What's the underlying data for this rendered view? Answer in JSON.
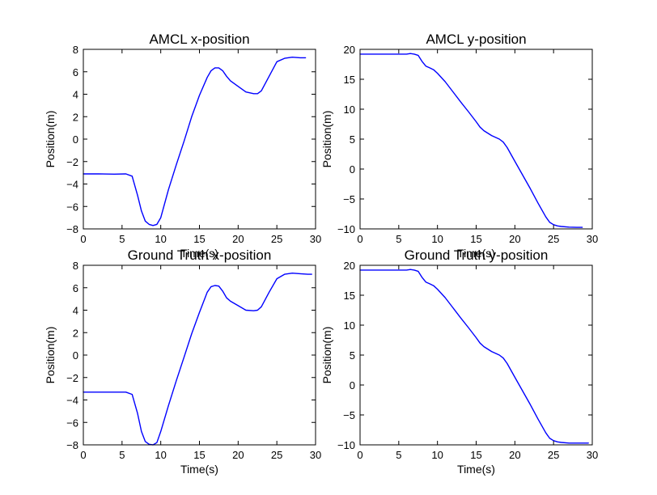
{
  "colors": {
    "line": "#0000ff",
    "axes": "#000000",
    "background": "#ffffff"
  },
  "chart_data": [
    {
      "type": "line",
      "title": "AMCL x-position",
      "xlabel": "Time(s)",
      "ylabel": "Position(m)",
      "xlim": [
        0,
        30
      ],
      "ylim": [
        -8,
        8
      ],
      "xticks": [
        0,
        5,
        10,
        15,
        20,
        25,
        30
      ],
      "yticks": [
        -8,
        -6,
        -4,
        -2,
        0,
        2,
        4,
        6,
        8
      ],
      "grid": false,
      "series": [
        {
          "x": [
            0,
            2,
            4,
            5.5,
            6.3,
            7,
            7.5,
            8,
            8.5,
            9,
            9.5,
            10,
            11,
            12,
            13,
            14,
            15,
            16,
            16.5,
            17,
            17.5,
            18,
            18.5,
            19,
            20,
            21,
            22,
            22.5,
            23,
            24,
            25,
            26,
            27,
            28,
            28.7
          ],
          "y": [
            -3.1,
            -3.1,
            -3.12,
            -3.1,
            -3.3,
            -5.0,
            -6.4,
            -7.3,
            -7.6,
            -7.7,
            -7.6,
            -7.0,
            -4.5,
            -2.3,
            -0.2,
            2.0,
            3.9,
            5.5,
            6.1,
            6.35,
            6.35,
            6.1,
            5.6,
            5.2,
            4.7,
            4.2,
            4.05,
            4.05,
            4.3,
            5.6,
            6.9,
            7.2,
            7.3,
            7.25,
            7.25
          ]
        }
      ]
    },
    {
      "type": "line",
      "title": "AMCL y-position",
      "xlabel": "Time(s)",
      "ylabel": "Position(m)",
      "xlim": [
        0,
        30
      ],
      "ylim": [
        -10,
        20
      ],
      "xticks": [
        0,
        5,
        10,
        15,
        20,
        25,
        30
      ],
      "yticks": [
        -10,
        -5,
        0,
        5,
        10,
        15,
        20
      ],
      "grid": false,
      "series": [
        {
          "x": [
            0,
            2,
            4,
            6,
            6.5,
            7,
            7.5,
            8,
            8.5,
            9,
            9.5,
            10,
            11,
            12,
            13,
            14,
            15,
            15.5,
            16,
            17,
            18,
            18.5,
            19,
            20,
            21,
            22,
            23,
            24,
            24.5,
            25,
            25.5,
            26,
            27,
            28,
            28.7
          ],
          "y": [
            19.2,
            19.2,
            19.2,
            19.2,
            19.3,
            19.2,
            19.0,
            18.0,
            17.2,
            16.9,
            16.6,
            16.0,
            14.6,
            12.9,
            11.2,
            9.6,
            7.9,
            7.0,
            6.4,
            5.6,
            5.0,
            4.5,
            3.6,
            1.3,
            -1.0,
            -3.3,
            -5.7,
            -8.0,
            -8.9,
            -9.3,
            -9.5,
            -9.6,
            -9.7,
            -9.75,
            -9.75
          ]
        }
      ]
    },
    {
      "type": "line",
      "title": "Ground Truth x-position",
      "xlabel": "Time(s)",
      "ylabel": "Position(m)",
      "xlim": [
        0,
        30
      ],
      "ylim": [
        -8,
        8
      ],
      "xticks": [
        0,
        5,
        10,
        15,
        20,
        25,
        30
      ],
      "yticks": [
        -8,
        -6,
        -4,
        -2,
        0,
        2,
        4,
        6,
        8
      ],
      "grid": false,
      "series": [
        {
          "x": [
            0,
            2,
            4,
            5.5,
            6.3,
            7,
            7.5,
            8,
            8.5,
            9,
            9.5,
            10,
            11,
            12,
            13,
            14,
            15,
            16,
            16.5,
            17,
            17.5,
            18,
            18.5,
            19,
            20,
            21,
            22,
            22.5,
            23,
            24,
            25,
            26,
            27,
            28,
            29,
            29.5
          ],
          "y": [
            -3.3,
            -3.3,
            -3.3,
            -3.3,
            -3.5,
            -5.2,
            -6.8,
            -7.7,
            -7.95,
            -8.0,
            -7.8,
            -6.8,
            -4.5,
            -2.3,
            -0.2,
            1.9,
            3.8,
            5.6,
            6.1,
            6.2,
            6.15,
            5.7,
            5.1,
            4.8,
            4.4,
            4.0,
            3.95,
            4.0,
            4.3,
            5.6,
            6.8,
            7.2,
            7.3,
            7.25,
            7.2,
            7.2
          ]
        }
      ]
    },
    {
      "type": "line",
      "title": "Ground Truth y-position",
      "xlabel": "Time(s)",
      "ylabel": "Position(m)",
      "xlim": [
        0,
        30
      ],
      "ylim": [
        -10,
        20
      ],
      "xticks": [
        0,
        5,
        10,
        15,
        20,
        25,
        30
      ],
      "yticks": [
        -10,
        -5,
        0,
        5,
        10,
        15,
        20
      ],
      "grid": false,
      "series": [
        {
          "x": [
            0,
            2,
            4,
            6,
            6.5,
            7,
            7.5,
            8,
            8.5,
            9,
            9.5,
            10,
            11,
            12,
            13,
            14,
            15,
            15.5,
            16,
            17,
            18,
            18.5,
            19,
            20,
            21,
            22,
            23,
            24,
            24.5,
            25,
            25.5,
            26,
            27,
            28,
            29,
            29.5
          ],
          "y": [
            19.2,
            19.2,
            19.2,
            19.2,
            19.3,
            19.2,
            19.0,
            18.0,
            17.2,
            16.9,
            16.6,
            16.0,
            14.6,
            12.9,
            11.2,
            9.6,
            7.9,
            7.0,
            6.4,
            5.6,
            5.0,
            4.5,
            3.6,
            1.3,
            -1.0,
            -3.3,
            -5.7,
            -8.0,
            -8.9,
            -9.3,
            -9.5,
            -9.6,
            -9.7,
            -9.7,
            -9.7,
            -9.7
          ]
        }
      ]
    }
  ]
}
